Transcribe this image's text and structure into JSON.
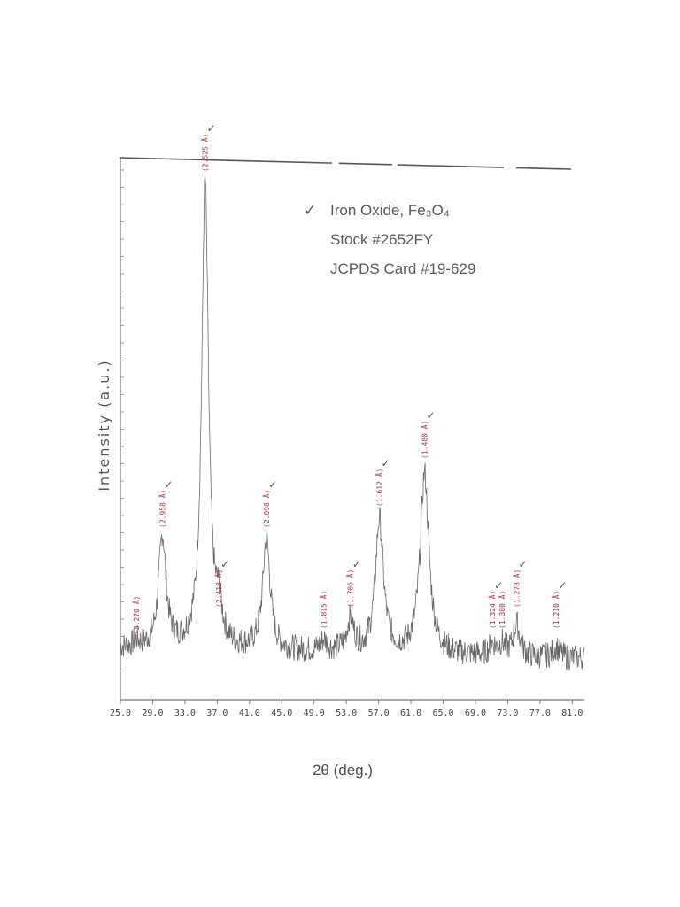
{
  "chart_data": {
    "type": "line",
    "xlabel": "2θ (deg.)",
    "ylabel": "Intensity (a.u.)",
    "xlim": [
      25.0,
      82.5
    ],
    "x_ticks": [
      "25.0",
      "29.0",
      "33.0",
      "37.0",
      "41.0",
      "45.0",
      "49.0",
      "53.0",
      "57.0",
      "61.0",
      "65.0",
      "69.0",
      "73.0",
      "77.0",
      "81.0"
    ],
    "ylim": [
      0,
      100
    ],
    "legend": {
      "marker": "✓",
      "lines": [
        "Iron Oxide, Fe₃O₄",
        "Stock #2652FY",
        "JCPDS Card #19-629"
      ]
    },
    "baseline": 8,
    "series": [
      {
        "values_description_free": true,
        "peaks": [
          {
            "x": 27.0,
            "height": 1,
            "width": 0.4,
            "label": "(3.270 Å)",
            "check": false
          },
          {
            "x": 30.2,
            "height": 21,
            "width": 0.55,
            "label": "(2.958 Å)",
            "check": true
          },
          {
            "x": 35.5,
            "height": 88,
            "width": 0.5,
            "label": "(2.525 Å)",
            "check": true
          },
          {
            "x": 37.2,
            "height": 6,
            "width": 0.45,
            "label": "(2.418 Å)",
            "check": true
          },
          {
            "x": 43.1,
            "height": 21,
            "width": 0.55,
            "label": "(2.098 Å)",
            "check": true
          },
          {
            "x": 50.2,
            "height": 2,
            "width": 0.5,
            "label": "(1.815 Å)",
            "check": false
          },
          {
            "x": 53.5,
            "height": 6,
            "width": 0.55,
            "label": "(1.706 Å)",
            "check": true
          },
          {
            "x": 57.1,
            "height": 25,
            "width": 0.6,
            "label": "(1.612 Å)",
            "check": true
          },
          {
            "x": 62.7,
            "height": 34,
            "width": 0.65,
            "label": "(1.480 Å)",
            "check": true
          },
          {
            "x": 71.1,
            "height": 2,
            "width": 0.5,
            "label": "(1.324 Å)",
            "check": true
          },
          {
            "x": 72.3,
            "height": 2,
            "width": 0.5,
            "label": "(1.300 Å)",
            "check": false
          },
          {
            "x": 74.1,
            "height": 6,
            "width": 0.5,
            "label": "(1.278 Å)",
            "check": true
          },
          {
            "x": 79.0,
            "height": 2,
            "width": 0.5,
            "label": "(1.210 Å)",
            "check": true
          }
        ]
      }
    ]
  }
}
